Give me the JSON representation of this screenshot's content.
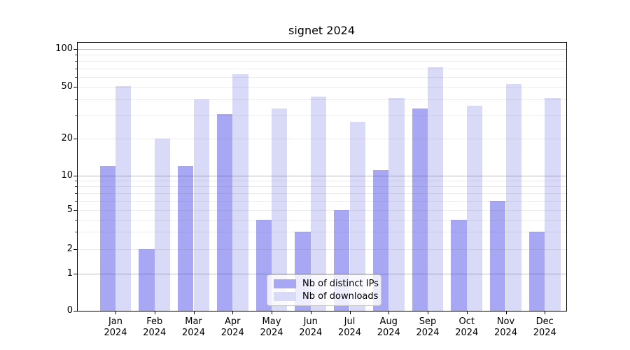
{
  "title": "signet 2024",
  "legend": {
    "items": [
      {
        "label": "Nb of distinct IPs",
        "color": "#a7a7f4"
      },
      {
        "label": "Nb of downloads",
        "color": "#d9d9f8"
      }
    ]
  },
  "chart_data": {
    "type": "bar",
    "title": "signet 2024",
    "categories": [
      "Jan 2024",
      "Feb 2024",
      "Mar 2024",
      "Apr 2024",
      "May 2024",
      "Jun 2024",
      "Jul 2024",
      "Aug 2024",
      "Sep 2024",
      "Oct 2024",
      "Nov 2024",
      "Dec 2024"
    ],
    "series": [
      {
        "name": "Nb of distinct IPs",
        "color": "#a7a7f4",
        "values": [
          12,
          2,
          12,
          31,
          4,
          3,
          5,
          11,
          34,
          4,
          6,
          3
        ]
      },
      {
        "name": "Nb of downloads",
        "color": "#d9d9f8",
        "values": [
          51,
          20,
          40,
          63,
          34,
          42,
          27,
          41,
          72,
          36,
          53,
          41
        ]
      }
    ],
    "y_axis": {
      "scale": "symlog",
      "tick_values": [
        0,
        1,
        2,
        5,
        10,
        20,
        50,
        100
      ],
      "major_gridlines": [
        1,
        10,
        100
      ],
      "minor_gridlines": [
        2,
        3,
        4,
        5,
        6,
        7,
        8,
        9,
        20,
        30,
        40,
        50,
        60,
        70,
        80,
        90
      ]
    },
    "x_axis": {
      "year_label": "2024"
    },
    "legend_position": "lower center",
    "grid": true,
    "background": "#ffffff"
  }
}
